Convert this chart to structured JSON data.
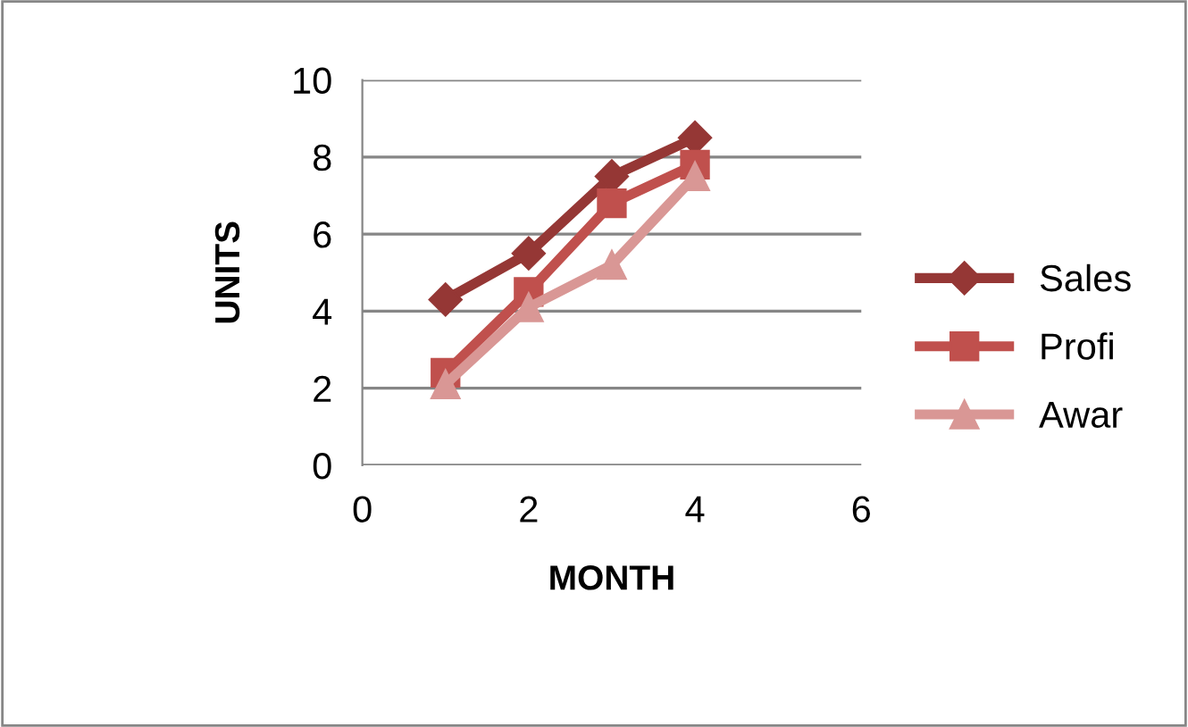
{
  "chart_data": {
    "type": "line",
    "xlabel": "MONTH",
    "ylabel": "UNITS",
    "xlim": [
      0,
      6
    ],
    "xticks": [
      0,
      2,
      4,
      6
    ],
    "ylim": [
      0,
      10
    ],
    "yticks": [
      0,
      2,
      4,
      6,
      8,
      10
    ],
    "grid": "y",
    "legend": "right",
    "x": [
      1,
      2,
      3,
      4
    ],
    "series": [
      {
        "name": "Sales",
        "color": "#953735",
        "marker": "diamond",
        "values": [
          4.3,
          5.5,
          7.5,
          8.5
        ]
      },
      {
        "name": "Profi",
        "color": "#c0504d",
        "marker": "square",
        "values": [
          2.4,
          4.5,
          6.8,
          7.8
        ]
      },
      {
        "name": "Awar",
        "color": "#d99795",
        "marker": "triangle",
        "values": [
          2.1,
          4.1,
          5.2,
          7.5
        ]
      }
    ]
  }
}
